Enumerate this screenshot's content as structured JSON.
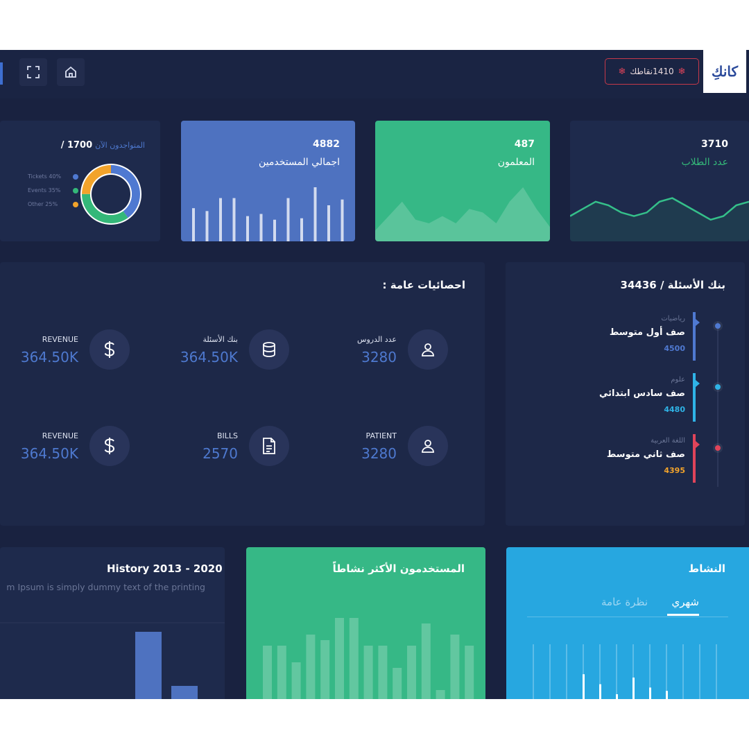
{
  "topbar": {
    "points_label": "1410نقاطك",
    "logo_text": "كانكِ"
  },
  "stats": {
    "students": {
      "value": "3710",
      "label": "عدد الطلاب"
    },
    "teachers": {
      "value": "487",
      "label": "المعلمون"
    },
    "total_users": {
      "value": "4882",
      "label": "اجمالي المستخدمين"
    },
    "online": {
      "value": "1700 /",
      "label": "المتواجدون الآن"
    }
  },
  "donut_legend": [
    {
      "label": "Tickets 40%",
      "color": "#4f79d1",
      "value": 40
    },
    {
      "label": "Events 35%",
      "color": "#34b879",
      "value": 35
    },
    {
      "label": "Other 25%",
      "color": "#f2a32b",
      "value": 25
    }
  ],
  "question_bank": {
    "title": "بنك الأسئلة / 34436",
    "items": [
      {
        "subject": "رياضيات",
        "grade": "صف أول متوسط",
        "count": "4500",
        "color": "#4f79d1"
      },
      {
        "subject": "علوم",
        "grade": "صف سادس ابتدائي",
        "count": "4480",
        "color": "#2fb3e6"
      },
      {
        "subject": "اللغة العربية",
        "grade": "صف ثاني متوسط",
        "count": "4395",
        "color": "#e0445a",
        "count_color": "#f2a32b"
      }
    ]
  },
  "general_stats": {
    "title": "احصائيات عامة :",
    "items": [
      {
        "label": "عدد الدروس",
        "value": "3280",
        "icon": "user-icon"
      },
      {
        "label": "بنك الأسئلة",
        "value": "364.50K",
        "icon": "database-icon"
      },
      {
        "label": "REVENUE",
        "value": "364.50K",
        "icon": "dollar-icon"
      },
      {
        "label": "PATIENT",
        "value": "3280",
        "icon": "user-icon"
      },
      {
        "label": "BILLS",
        "value": "2570",
        "icon": "document-icon"
      },
      {
        "label": "REVENUE",
        "value": "364.50K",
        "icon": "dollar-icon"
      }
    ]
  },
  "activity": {
    "title": "النشاط",
    "tabs": [
      "شهري",
      "نظرة عامة"
    ],
    "active_tab": "شهري"
  },
  "most_active": {
    "title": "المستخدمون الأكثر نشاطاً"
  },
  "history": {
    "title": "History 2013 - 2020",
    "subtitle": "m Ipsum is simply dummy text of the printing"
  },
  "chart_data": [
    {
      "type": "line",
      "label": "عدد الطلاب",
      "values": [
        0.35,
        0.45,
        0.55,
        0.5,
        0.4,
        0.35,
        0.4,
        0.55,
        0.6,
        0.5,
        0.4,
        0.3,
        0.35,
        0.5,
        0.55
      ]
    },
    {
      "type": "area",
      "label": "المعلمون",
      "values": [
        0.15,
        0.35,
        0.55,
        0.3,
        0.25,
        0.35,
        0.25,
        0.45,
        0.4,
        0.25,
        0.55,
        0.75,
        0.45,
        0.2
      ]
    },
    {
      "type": "bar",
      "label": "اجمالي المستخدمين",
      "values": [
        0.46,
        0.42,
        0.6,
        0.6,
        0.35,
        0.38,
        0.3,
        0.6,
        0.32,
        0.75,
        0.5,
        0.58
      ]
    },
    {
      "type": "pie",
      "categories": [
        "Tickets",
        "Events",
        "Other"
      ],
      "values": [
        40,
        35,
        25
      ]
    },
    {
      "type": "bar",
      "label": "المستخدمون الأكثر نشاطاً",
      "values": [
        0.55,
        0.55,
        0.4,
        0.65,
        0.6,
        0.8,
        0.8,
        0.55,
        0.55,
        0.35,
        0.55,
        0.75,
        0.15,
        0.65,
        0.55
      ]
    },
    {
      "type": "bar",
      "label": "النشاط",
      "values": [
        0.35,
        0.45,
        0.3,
        0.55,
        0.4,
        0.25,
        0.5,
        0.35,
        0.3,
        0.45,
        0.4,
        0.3
      ]
    },
    {
      "type": "bar",
      "label": "History 2013 - 2020",
      "values": [
        0.9,
        0.25
      ]
    }
  ]
}
